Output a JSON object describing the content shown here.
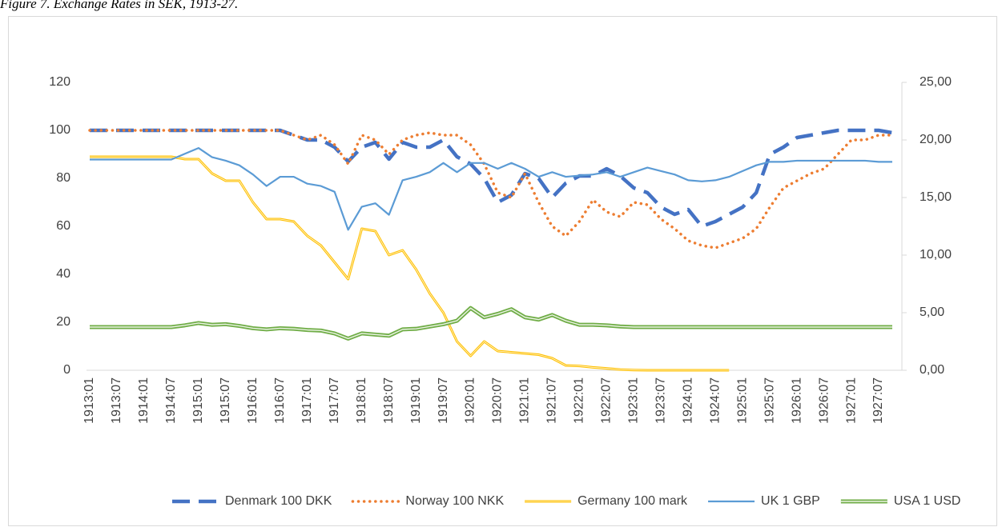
{
  "chart_data": {
    "type": "line",
    "title": "Figure 7. Exchange Rates in SEK, 1913-27.",
    "categories": [
      "1913:01",
      null,
      "1913:07",
      null,
      "1914:01",
      null,
      "1914:07",
      null,
      "1915:01",
      null,
      "1915:07",
      null,
      "1916:01",
      null,
      "1916:07",
      null,
      "1917:01",
      null,
      "1917:07",
      null,
      "1918:01",
      null,
      "1918:07",
      null,
      "1919:01",
      null,
      "1919:07",
      null,
      "1920:01",
      null,
      "1920:07",
      null,
      "1921:01",
      null,
      "1921:07",
      null,
      "1922:01",
      null,
      "1922:07",
      null,
      "1923:01",
      null,
      "1923:07",
      null,
      "1924:01",
      null,
      "1924:07",
      null,
      "1925:01",
      null,
      "1925:07",
      null,
      "1926:01",
      null,
      "1926:07",
      null,
      "1927:01",
      null,
      "1927:07",
      null
    ],
    "series": [
      {
        "name": "Denmark 100 DKK",
        "color": "#4472c4",
        "line_style": "dashed",
        "axis": "y",
        "values": [
          100,
          100,
          100,
          100,
          100,
          100,
          100,
          100,
          100,
          100,
          100,
          100,
          100,
          100,
          100,
          98,
          96,
          96,
          93,
          87,
          93,
          95,
          88,
          95,
          93,
          93,
          96,
          89,
          86,
          80,
          70,
          73,
          82,
          80,
          72,
          78,
          81,
          81,
          84,
          81,
          76,
          74,
          68,
          65,
          67,
          60,
          62,
          65,
          68,
          74,
          90,
          93,
          97,
          98,
          99,
          100,
          100,
          100,
          100,
          99
        ]
      },
      {
        "name": "Norway 100 NKK",
        "color": "#ed7d31",
        "line_style": "dotted",
        "axis": "y",
        "values": [
          100,
          100,
          100,
          100,
          100,
          100,
          100,
          100,
          100,
          100,
          100,
          100,
          100,
          100,
          100,
          98,
          96,
          98,
          94,
          86,
          98,
          96,
          90,
          96,
          98,
          99,
          98,
          98,
          94,
          86,
          74,
          72,
          82,
          70,
          60,
          56,
          62,
          71,
          66,
          64,
          70,
          69,
          63,
          59,
          54,
          52,
          51,
          53,
          55,
          59,
          68,
          76,
          79,
          82,
          84,
          90,
          96,
          96,
          98,
          98
        ]
      },
      {
        "name": "Germany 100 mark",
        "color": "#ffc000",
        "line_style": "double",
        "axis": "y",
        "values": [
          89,
          89,
          89,
          89,
          89,
          89,
          89,
          88,
          88,
          82,
          79,
          79,
          70,
          63,
          63,
          62,
          56,
          52,
          45,
          38,
          59,
          58,
          48,
          50,
          42,
          32,
          24,
          12,
          6,
          12,
          8,
          7.5,
          7,
          6.5,
          5,
          2,
          1.8,
          1.2,
          0.8,
          0.3,
          0.1,
          0,
          0,
          0,
          0,
          0,
          0,
          0,
          null,
          null,
          null,
          null,
          null,
          null,
          null,
          null,
          null,
          null,
          null,
          null
        ]
      },
      {
        "name": "UK 1 GBP",
        "color": "#5b9bd5",
        "line_style": "solid",
        "axis": "y2",
        "values": [
          18.3,
          18.3,
          18.3,
          18.3,
          18.3,
          18.3,
          18.3,
          18.8,
          19.3,
          18.5,
          18.2,
          17.8,
          17.0,
          16.0,
          16.8,
          16.8,
          16.2,
          16.0,
          15.5,
          12.2,
          14.2,
          14.5,
          13.5,
          16.5,
          16.8,
          17.2,
          18.0,
          17.2,
          18.0,
          18.0,
          17.5,
          18.0,
          17.5,
          16.8,
          17.2,
          16.8,
          16.9,
          17.0,
          17.2,
          16.8,
          17.2,
          17.6,
          17.3,
          17.0,
          16.5,
          16.4,
          16.5,
          16.8,
          17.3,
          17.8,
          18.1,
          18.1,
          18.2,
          18.2,
          18.2,
          18.2,
          18.2,
          18.2,
          18.1,
          18.1
        ]
      },
      {
        "name": "USA 1 USD",
        "color": "#70ad47",
        "line_style": "double",
        "axis": "y2",
        "values": [
          3.75,
          3.75,
          3.75,
          3.75,
          3.75,
          3.75,
          3.75,
          3.9,
          4.1,
          3.95,
          4.0,
          3.85,
          3.65,
          3.55,
          3.65,
          3.6,
          3.5,
          3.45,
          3.2,
          2.75,
          3.2,
          3.1,
          3.0,
          3.55,
          3.6,
          3.8,
          4.0,
          4.3,
          5.4,
          4.6,
          4.9,
          5.3,
          4.6,
          4.4,
          4.8,
          4.3,
          3.95,
          3.95,
          3.9,
          3.8,
          3.75,
          3.75,
          3.75,
          3.75,
          3.75,
          3.75,
          3.75,
          3.75,
          3.75,
          3.75,
          3.75,
          3.75,
          3.75,
          3.75,
          3.75,
          3.75,
          3.75,
          3.75,
          3.75,
          3.75
        ]
      }
    ],
    "ylim": [
      0,
      120
    ],
    "yticks": [
      0,
      20,
      40,
      60,
      80,
      100,
      120
    ],
    "y2lim": [
      0,
      25
    ],
    "y2ticks": [
      {
        "value": 0,
        "label": "0,00"
      },
      {
        "value": 5,
        "label": "5,00"
      },
      {
        "value": 10,
        "label": "10,00"
      },
      {
        "value": 15,
        "label": "15,00"
      },
      {
        "value": 20,
        "label": "20,00"
      },
      {
        "value": 25,
        "label": "25,00"
      }
    ],
    "grid": false,
    "legend": "bottom"
  }
}
